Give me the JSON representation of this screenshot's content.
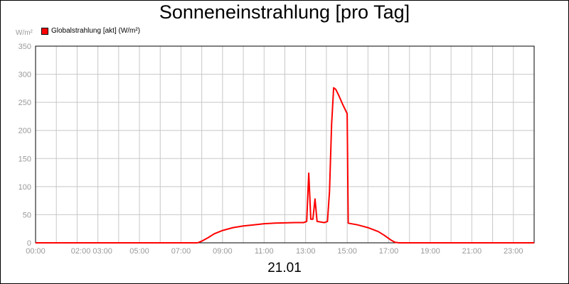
{
  "chart_data": {
    "type": "line",
    "title": "Sonneneinstrahlung [pro Tag]",
    "ylabel": "W/m²",
    "xlabel": "21.01",
    "ylim": [
      0,
      350
    ],
    "xlim": [
      0,
      24
    ],
    "grid": true,
    "legend_position": "top-left",
    "yticks": [
      0,
      50,
      100,
      150,
      200,
      250,
      300,
      350
    ],
    "xticks": [
      {
        "x": 0,
        "label": "00:00"
      },
      {
        "x": 2.7,
        "label": "02:00 03:00"
      },
      {
        "x": 5,
        "label": "05:00"
      },
      {
        "x": 7,
        "label": "07:00"
      },
      {
        "x": 9,
        "label": "09:00"
      },
      {
        "x": 11,
        "label": "11:00"
      },
      {
        "x": 13,
        "label": "13:00"
      },
      {
        "x": 15,
        "label": "15:00"
      },
      {
        "x": 17,
        "label": "17:00"
      },
      {
        "x": 19,
        "label": "19:00"
      },
      {
        "x": 21,
        "label": "21:00"
      },
      {
        "x": 23,
        "label": "23:00"
      }
    ],
    "series": [
      {
        "name": "Globalstrahlung [akt] (W/m²)",
        "color": "#ff0000",
        "points": [
          [
            0,
            0
          ],
          [
            7.8,
            0
          ],
          [
            8.0,
            3
          ],
          [
            8.3,
            9
          ],
          [
            8.6,
            16
          ],
          [
            9.0,
            22
          ],
          [
            9.5,
            27
          ],
          [
            10.0,
            30
          ],
          [
            10.5,
            32
          ],
          [
            11.0,
            34
          ],
          [
            11.5,
            35
          ],
          [
            12.0,
            35.5
          ],
          [
            12.5,
            36
          ],
          [
            12.9,
            36
          ],
          [
            13.05,
            38
          ],
          [
            13.15,
            124
          ],
          [
            13.25,
            42
          ],
          [
            13.35,
            42
          ],
          [
            13.45,
            78
          ],
          [
            13.55,
            38
          ],
          [
            13.9,
            36
          ],
          [
            14.05,
            38
          ],
          [
            14.15,
            92
          ],
          [
            14.25,
            210
          ],
          [
            14.35,
            276
          ],
          [
            14.45,
            273
          ],
          [
            14.6,
            262
          ],
          [
            14.8,
            245
          ],
          [
            15.0,
            230
          ],
          [
            15.05,
            35
          ],
          [
            15.5,
            32
          ],
          [
            16.0,
            27
          ],
          [
            16.5,
            20
          ],
          [
            16.8,
            13
          ],
          [
            17.1,
            5
          ],
          [
            17.3,
            1
          ],
          [
            17.5,
            0
          ],
          [
            24,
            0
          ]
        ]
      }
    ]
  }
}
